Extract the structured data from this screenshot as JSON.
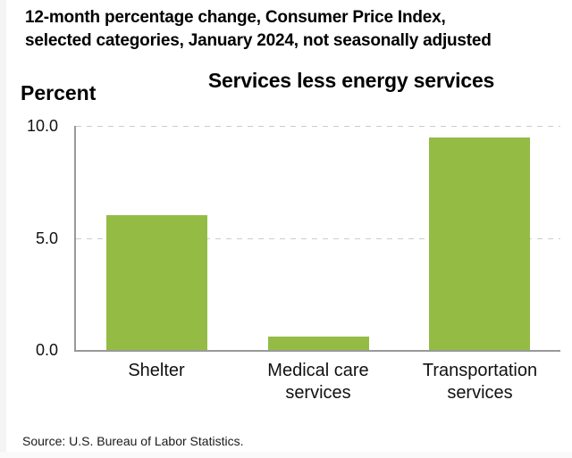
{
  "header": {
    "line1": "12-month percentage change, Consumer Price Index,",
    "line2": "selected categories, January 2024, not seasonally adjusted"
  },
  "footer": {
    "source": "Source: U.S. Bureau of Labor Statistics."
  },
  "chart_data": {
    "type": "bar",
    "title": "Services less energy services",
    "ylabel": "Percent",
    "xlabel": "",
    "categories": [
      "Shelter",
      "Medical care\nservices",
      "Transportation\nservices"
    ],
    "values": [
      6.0,
      0.6,
      9.5
    ],
    "ylim": [
      0,
      10
    ],
    "yticks": [
      {
        "value": 0,
        "label": "0.0"
      },
      {
        "value": 5,
        "label": "5.0"
      },
      {
        "value": 10,
        "label": "10.0"
      }
    ],
    "grid": "horizontal dashed gridlines at 5.0 and 10.0",
    "legend_position": "none",
    "bar_color": "#94bc45",
    "axis_color": "#999999",
    "gridline_color": "#cccccc",
    "text_color": "#000000"
  }
}
